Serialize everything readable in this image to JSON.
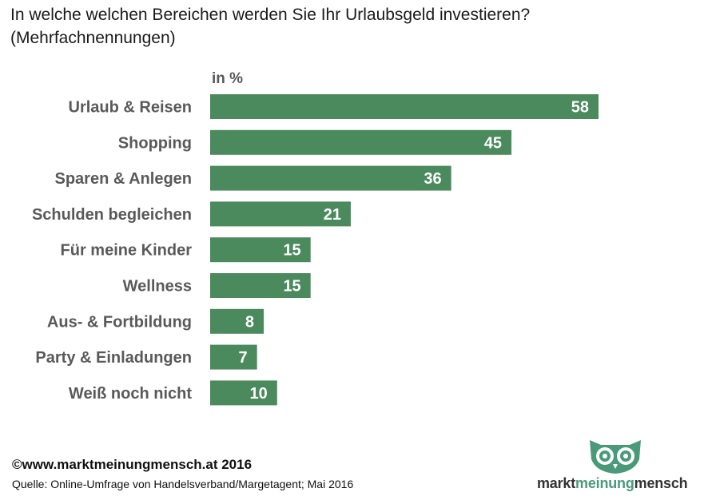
{
  "chart_data": {
    "type": "bar",
    "orientation": "horizontal",
    "title": "In welche welchen Bereichen werden Sie Ihr Urlaubsgeld investieren?",
    "subtitle": "(Mehrfachnennungen)",
    "unit_label": "in %",
    "categories": [
      "Urlaub & Reisen",
      "Shopping",
      "Sparen & Anlegen",
      "Schulden begleichen",
      "Für meine Kinder",
      "Wellness",
      "Aus- & Fortbildung",
      "Party & Einladungen",
      "Weiß noch nicht"
    ],
    "values": [
      58,
      45,
      36,
      21,
      15,
      15,
      8,
      7,
      10
    ],
    "xlim": [
      0,
      58
    ],
    "bar_color": "#4a8a5c",
    "data_labels": true,
    "grid": false,
    "legend": "none"
  },
  "footer": {
    "copyright": "©www.marktmeinungmensch.at 2016",
    "source": "Quelle: Online-Umfrage von Handelsverband/Margetagent; Mai 2016"
  },
  "logo": {
    "word1": "markt",
    "word2": "meinung",
    "word3": "mensch",
    "icon": "owl-icon",
    "accent_color": "#4a9a7a"
  }
}
